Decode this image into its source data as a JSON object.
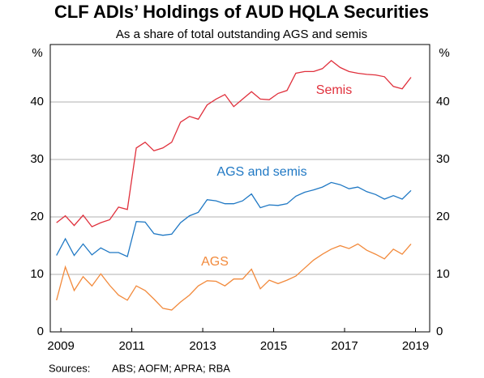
{
  "chart_data": {
    "type": "line",
    "title": "CLF ADIs’ Holdings of AUD HQLA Securities",
    "subtitle": "As a share of total outstanding AGS and semis",
    "y_label": "%",
    "y2_label": "%",
    "source_label": "Sources:",
    "sources": "ABS; AOFM; APRA; RBA",
    "x": [
      2008.875,
      2009.125,
      2009.375,
      2009.625,
      2009.875,
      2010.125,
      2010.375,
      2010.625,
      2010.875,
      2011.125,
      2011.375,
      2011.625,
      2011.875,
      2012.125,
      2012.375,
      2012.625,
      2012.875,
      2013.125,
      2013.375,
      2013.625,
      2013.875,
      2014.125,
      2014.375,
      2014.625,
      2014.875,
      2015.125,
      2015.375,
      2015.625,
      2015.875,
      2016.125,
      2016.375,
      2016.625,
      2016.875,
      2017.125,
      2017.375,
      2017.625,
      2017.875,
      2018.125,
      2018.375,
      2018.625,
      2018.875
    ],
    "series": [
      {
        "name": "Semis",
        "color": "#e0303c",
        "values": [
          19,
          20.2,
          18.5,
          20.3,
          18.3,
          19,
          19.5,
          21.7,
          21.3,
          32,
          33,
          31.5,
          32,
          33,
          36.5,
          37.5,
          37,
          39.5,
          40.5,
          41.3,
          39.2,
          40.5,
          41.8,
          40.5,
          40.4,
          41.5,
          42,
          45,
          45.3,
          45.3,
          45.8,
          47.2,
          46,
          45.3,
          45,
          44.8,
          44.7,
          44.4,
          42.7,
          42.3,
          44.3
        ]
      },
      {
        "name": "AGS and semis",
        "color": "#1f78c4",
        "values": [
          13.3,
          16.2,
          13.3,
          15.3,
          13.4,
          14.6,
          13.8,
          13.8,
          13.1,
          19.2,
          19.1,
          17.1,
          16.8,
          17,
          19,
          20.2,
          20.8,
          23,
          22.8,
          22.3,
          22.3,
          22.8,
          24,
          21.6,
          22.1,
          22,
          22.3,
          23.6,
          24.3,
          24.7,
          25.2,
          26,
          25.6,
          24.9,
          25.2,
          24.4,
          23.9,
          23.1,
          23.7,
          23.1,
          24.6
        ]
      },
      {
        "name": "AGS",
        "color": "#f28a3c",
        "values": [
          5.5,
          11.3,
          7.2,
          9.6,
          8,
          10.1,
          8.1,
          6.4,
          5.5,
          8,
          7.2,
          5.7,
          4.1,
          3.8,
          5.2,
          6.4,
          8,
          8.9,
          8.8,
          8,
          9.2,
          9.2,
          10.9,
          7.5,
          9,
          8.4,
          9,
          9.7,
          11.1,
          12.5,
          13.5,
          14.4,
          15,
          14.5,
          15.3,
          14.2,
          13.5,
          12.7,
          14.4,
          13.5,
          15.3
        ]
      }
    ],
    "xlim": [
      2008.7,
      2019.4
    ],
    "xticks": [
      2009,
      2011,
      2013,
      2015,
      2017,
      2019
    ],
    "ylim": [
      0,
      50
    ],
    "yticks": [
      0,
      10,
      20,
      30,
      40
    ],
    "grid": true
  }
}
